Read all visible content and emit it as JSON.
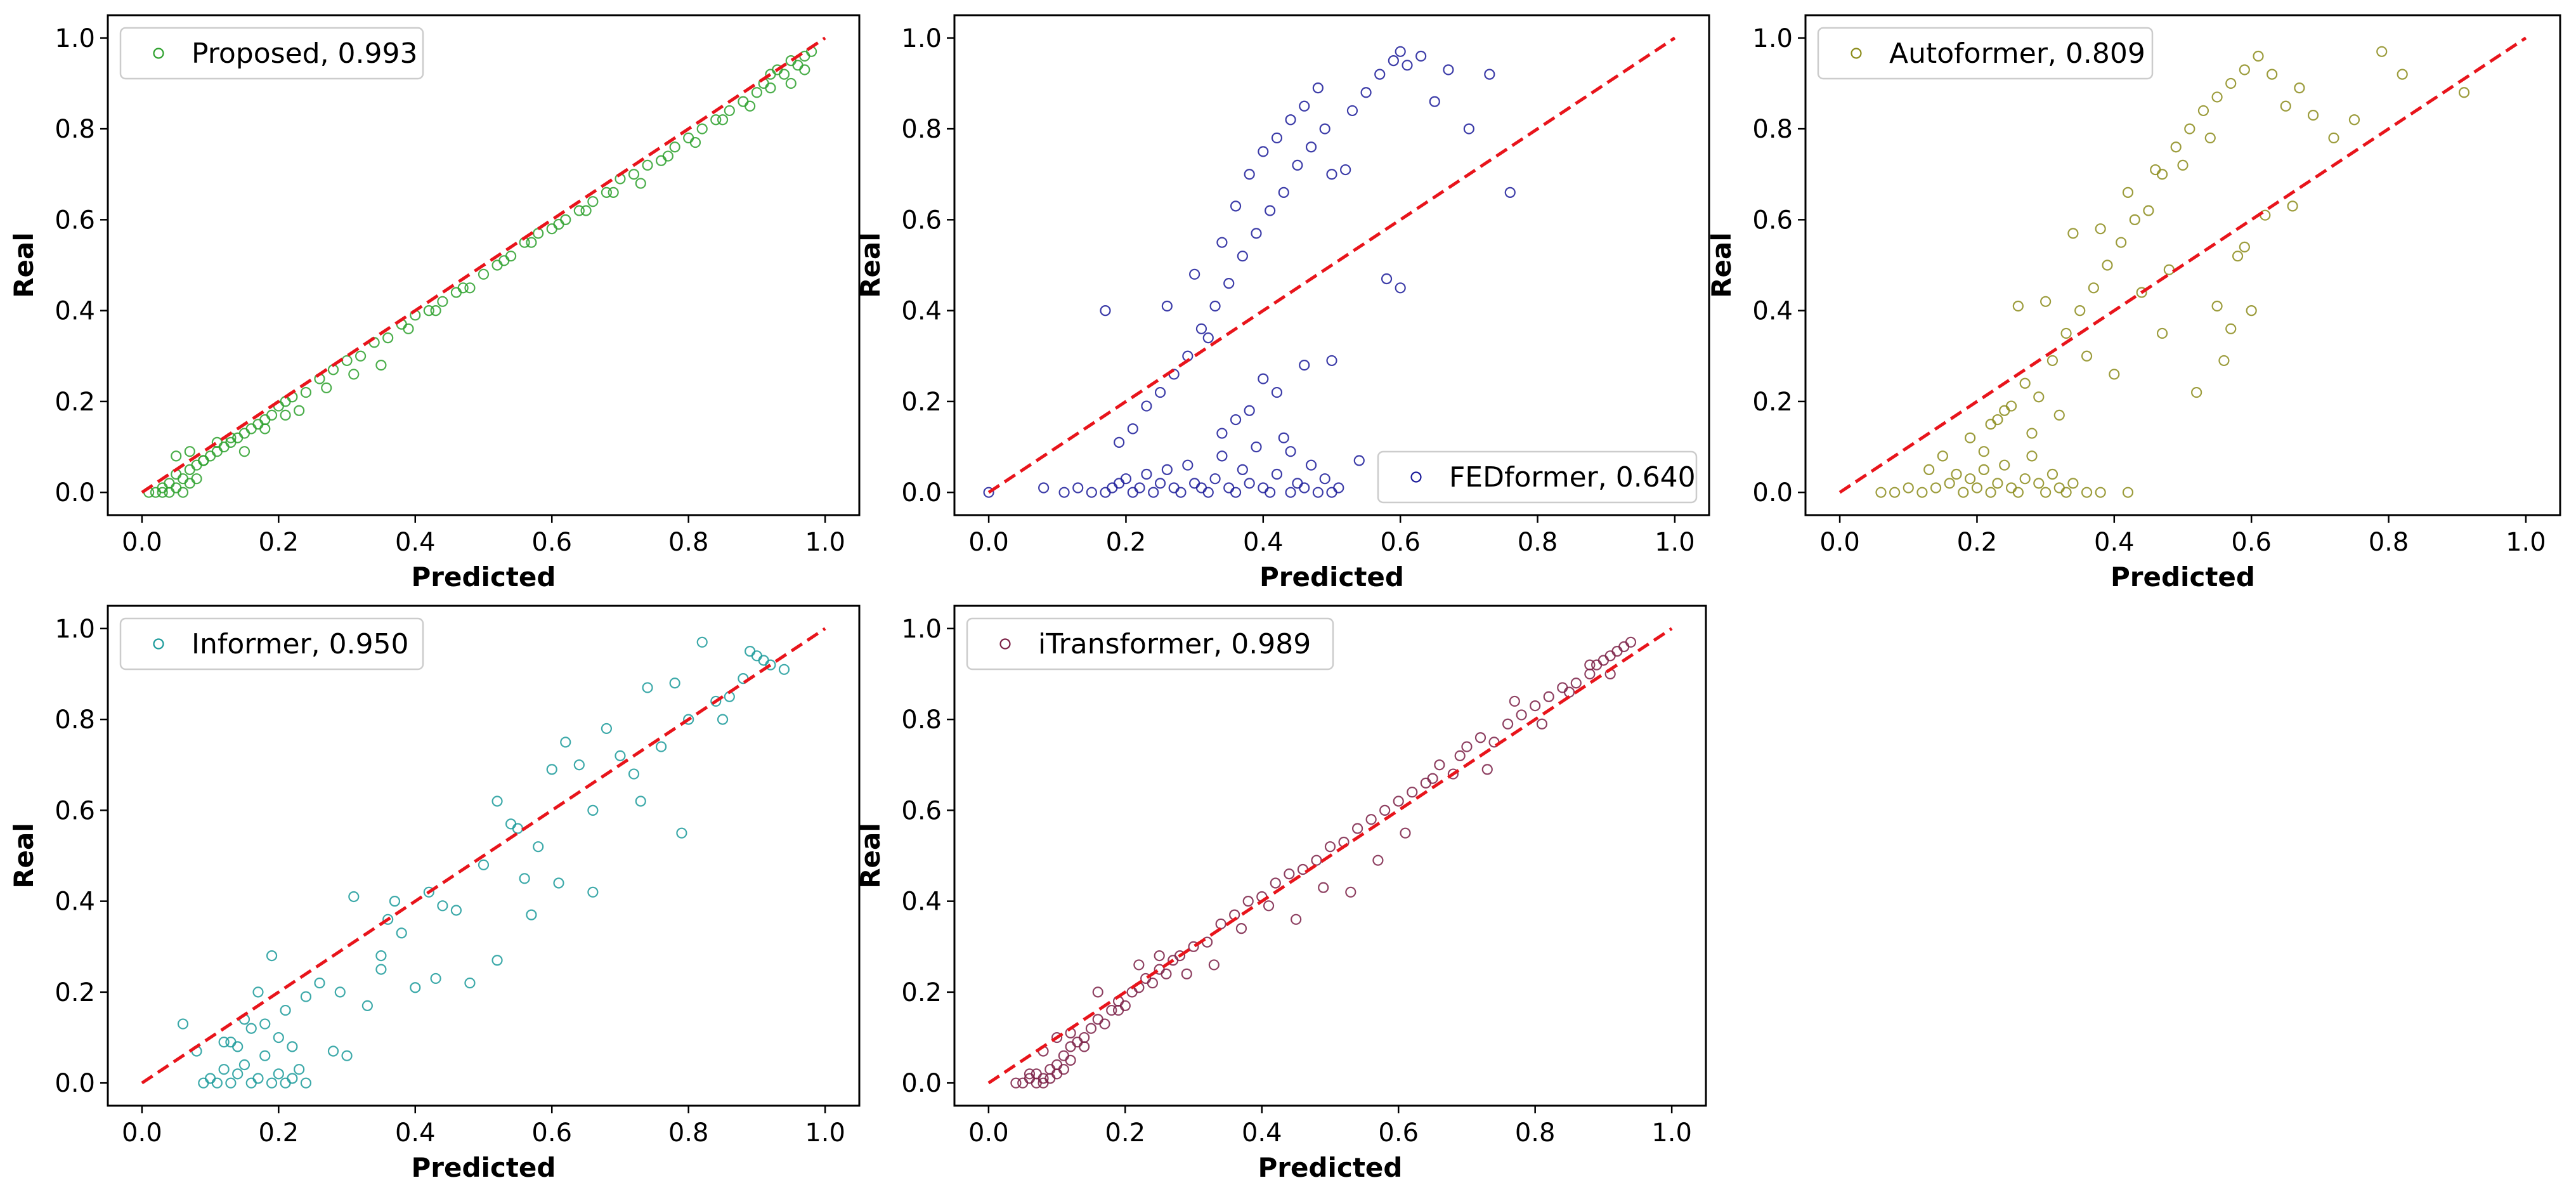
{
  "chart_data": [
    {
      "type": "scatter",
      "series_name": "Proposed",
      "score": "0.993",
      "legend_label": "Proposed, 0.993",
      "color": "#2ca02c",
      "legend_position": "upper-left",
      "xlabel": "Predicted",
      "ylabel": "Real",
      "xlim": [
        -0.05,
        1.05
      ],
      "ylim": [
        -0.05,
        1.05
      ],
      "xticks": [
        0.0,
        0.2,
        0.4,
        0.6,
        0.8,
        1.0
      ],
      "yticks": [
        0.0,
        0.2,
        0.4,
        0.6,
        0.8,
        1.0
      ],
      "tick_labels": [
        "0.0",
        "0.2",
        "0.4",
        "0.6",
        "0.8",
        "1.0"
      ],
      "reference_line": "y = x",
      "x": [
        0.01,
        0.02,
        0.03,
        0.03,
        0.04,
        0.04,
        0.05,
        0.05,
        0.06,
        0.06,
        0.07,
        0.07,
        0.08,
        0.08,
        0.09,
        0.1,
        0.11,
        0.12,
        0.13,
        0.14,
        0.15,
        0.16,
        0.17,
        0.18,
        0.19,
        0.2,
        0.21,
        0.22,
        0.24,
        0.26,
        0.28,
        0.3,
        0.32,
        0.34,
        0.36,
        0.38,
        0.4,
        0.42,
        0.44,
        0.46,
        0.48,
        0.5,
        0.52,
        0.54,
        0.56,
        0.58,
        0.6,
        0.62,
        0.64,
        0.66,
        0.68,
        0.7,
        0.72,
        0.74,
        0.76,
        0.78,
        0.8,
        0.82,
        0.84,
        0.86,
        0.88,
        0.9,
        0.91,
        0.92,
        0.93,
        0.94,
        0.95,
        0.96,
        0.97,
        0.98,
        0.05,
        0.07,
        0.09,
        0.11,
        0.13,
        0.15,
        0.18,
        0.21,
        0.23,
        0.27,
        0.31,
        0.35,
        0.39,
        0.43,
        0.47,
        0.53,
        0.57,
        0.61,
        0.65,
        0.69,
        0.73,
        0.77,
        0.81,
        0.85,
        0.89,
        0.92,
        0.95,
        0.97
      ],
      "y": [
        0.0,
        0.0,
        0.01,
        0.0,
        0.02,
        0.0,
        0.01,
        0.04,
        0.03,
        0.0,
        0.05,
        0.02,
        0.06,
        0.03,
        0.07,
        0.08,
        0.09,
        0.1,
        0.11,
        0.12,
        0.13,
        0.14,
        0.15,
        0.16,
        0.17,
        0.19,
        0.2,
        0.21,
        0.22,
        0.25,
        0.27,
        0.29,
        0.3,
        0.33,
        0.34,
        0.37,
        0.39,
        0.4,
        0.42,
        0.44,
        0.45,
        0.48,
        0.5,
        0.52,
        0.55,
        0.57,
        0.58,
        0.6,
        0.62,
        0.64,
        0.66,
        0.69,
        0.7,
        0.72,
        0.73,
        0.76,
        0.78,
        0.8,
        0.82,
        0.84,
        0.86,
        0.88,
        0.9,
        0.92,
        0.93,
        0.92,
        0.95,
        0.94,
        0.96,
        0.97,
        0.08,
        0.09,
        0.07,
        0.11,
        0.12,
        0.09,
        0.14,
        0.17,
        0.18,
        0.23,
        0.26,
        0.28,
        0.36,
        0.4,
        0.45,
        0.51,
        0.55,
        0.59,
        0.62,
        0.66,
        0.68,
        0.74,
        0.77,
        0.82,
        0.85,
        0.89,
        0.9,
        0.93
      ]
    },
    {
      "type": "scatter",
      "series_name": "FEDformer",
      "score": "0.640",
      "legend_label": "FEDformer, 0.640",
      "color": "#1a1a99",
      "legend_position": "lower-right",
      "xlabel": "Predicted",
      "ylabel": "Real",
      "xlim": [
        -0.05,
        1.05
      ],
      "ylim": [
        -0.05,
        1.05
      ],
      "xticks": [
        0.0,
        0.2,
        0.4,
        0.6,
        0.8,
        1.0
      ],
      "yticks": [
        0.0,
        0.2,
        0.4,
        0.6,
        0.8,
        1.0
      ],
      "tick_labels": [
        "0.0",
        "0.2",
        "0.4",
        "0.6",
        "0.8",
        "1.0"
      ],
      "reference_line": "y = x",
      "x": [
        0.0,
        0.08,
        0.11,
        0.13,
        0.15,
        0.17,
        0.18,
        0.19,
        0.2,
        0.21,
        0.22,
        0.23,
        0.24,
        0.25,
        0.26,
        0.27,
        0.28,
        0.29,
        0.3,
        0.31,
        0.32,
        0.33,
        0.34,
        0.35,
        0.36,
        0.37,
        0.38,
        0.39,
        0.4,
        0.41,
        0.42,
        0.43,
        0.44,
        0.45,
        0.46,
        0.47,
        0.48,
        0.49,
        0.5,
        0.51,
        0.19,
        0.21,
        0.23,
        0.25,
        0.27,
        0.29,
        0.31,
        0.33,
        0.35,
        0.37,
        0.39,
        0.41,
        0.43,
        0.45,
        0.47,
        0.49,
        0.53,
        0.55,
        0.57,
        0.59,
        0.6,
        0.61,
        0.63,
        0.65,
        0.67,
        0.7,
        0.73,
        0.76,
        0.17,
        0.26,
        0.3,
        0.34,
        0.36,
        0.38,
        0.4,
        0.42,
        0.44,
        0.46,
        0.48,
        0.5,
        0.52,
        0.58,
        0.6,
        0.34,
        0.38,
        0.42,
        0.46,
        0.5,
        0.54,
        0.32,
        0.36,
        0.4,
        0.44
      ],
      "y": [
        0.0,
        0.01,
        0.0,
        0.01,
        0.0,
        0.0,
        0.01,
        0.02,
        0.03,
        0.0,
        0.01,
        0.04,
        0.0,
        0.02,
        0.05,
        0.01,
        0.0,
        0.06,
        0.02,
        0.01,
        0.0,
        0.03,
        0.08,
        0.01,
        0.0,
        0.05,
        0.02,
        0.1,
        0.01,
        0.0,
        0.04,
        0.12,
        0.0,
        0.02,
        0.01,
        0.06,
        0.0,
        0.03,
        0.0,
        0.01,
        0.11,
        0.14,
        0.19,
        0.22,
        0.26,
        0.3,
        0.36,
        0.41,
        0.46,
        0.52,
        0.57,
        0.62,
        0.66,
        0.72,
        0.76,
        0.8,
        0.84,
        0.88,
        0.92,
        0.95,
        0.97,
        0.94,
        0.96,
        0.86,
        0.93,
        0.8,
        0.92,
        0.66,
        0.4,
        0.41,
        0.48,
        0.55,
        0.63,
        0.7,
        0.75,
        0.78,
        0.82,
        0.85,
        0.89,
        0.7,
        0.71,
        0.47,
        0.45,
        0.13,
        0.18,
        0.22,
        0.28,
        0.29,
        0.07,
        0.34,
        0.16,
        0.25,
        0.09
      ]
    },
    {
      "type": "scatter",
      "series_name": "Autoformer",
      "score": "0.809",
      "legend_label": "Autoformer, 0.809",
      "color": "#8b8b1a",
      "legend_position": "upper-left",
      "xlabel": "Predicted",
      "ylabel": "Real",
      "xlim": [
        -0.05,
        1.05
      ],
      "ylim": [
        -0.05,
        1.05
      ],
      "xticks": [
        0.0,
        0.2,
        0.4,
        0.6,
        0.8,
        1.0
      ],
      "yticks": [
        0.0,
        0.2,
        0.4,
        0.6,
        0.8,
        1.0
      ],
      "tick_labels": [
        "0.0",
        "0.2",
        "0.4",
        "0.6",
        "0.8",
        "1.0"
      ],
      "reference_line": "y = x",
      "x": [
        0.06,
        0.08,
        0.1,
        0.12,
        0.14,
        0.16,
        0.18,
        0.19,
        0.2,
        0.21,
        0.22,
        0.23,
        0.24,
        0.25,
        0.26,
        0.27,
        0.28,
        0.29,
        0.3,
        0.31,
        0.32,
        0.33,
        0.34,
        0.36,
        0.38,
        0.42,
        0.13,
        0.15,
        0.17,
        0.19,
        0.21,
        0.23,
        0.25,
        0.27,
        0.29,
        0.31,
        0.33,
        0.35,
        0.37,
        0.39,
        0.41,
        0.43,
        0.45,
        0.47,
        0.49,
        0.51,
        0.53,
        0.55,
        0.57,
        0.59,
        0.61,
        0.63,
        0.65,
        0.67,
        0.69,
        0.72,
        0.75,
        0.79,
        0.82,
        0.91,
        0.22,
        0.26,
        0.3,
        0.34,
        0.38,
        0.42,
        0.46,
        0.5,
        0.54,
        0.58,
        0.62,
        0.66,
        0.44,
        0.48,
        0.52,
        0.56,
        0.6,
        0.4,
        0.36,
        0.32,
        0.28,
        0.24,
        0.47,
        0.55,
        0.59,
        0.57
      ],
      "y": [
        0.0,
        0.0,
        0.01,
        0.0,
        0.01,
        0.02,
        0.0,
        0.03,
        0.01,
        0.05,
        0.0,
        0.02,
        0.06,
        0.01,
        0.0,
        0.03,
        0.08,
        0.02,
        0.0,
        0.04,
        0.01,
        0.0,
        0.02,
        0.0,
        0.0,
        0.0,
        0.05,
        0.08,
        0.04,
        0.12,
        0.09,
        0.16,
        0.19,
        0.24,
        0.21,
        0.29,
        0.35,
        0.4,
        0.45,
        0.5,
        0.55,
        0.6,
        0.62,
        0.7,
        0.76,
        0.8,
        0.84,
        0.87,
        0.9,
        0.93,
        0.96,
        0.92,
        0.85,
        0.89,
        0.83,
        0.78,
        0.82,
        0.97,
        0.92,
        0.88,
        0.15,
        0.41,
        0.42,
        0.57,
        0.58,
        0.66,
        0.71,
        0.72,
        0.78,
        0.52,
        0.61,
        0.63,
        0.44,
        0.49,
        0.22,
        0.29,
        0.4,
        0.26,
        0.3,
        0.17,
        0.13,
        0.18,
        0.35,
        0.41,
        0.54,
        0.36
      ]
    },
    {
      "type": "scatter",
      "series_name": "Informer",
      "score": "0.950",
      "legend_label": "Informer, 0.950",
      "color": "#1a9a9a",
      "legend_position": "upper-left",
      "xlabel": "Predicted",
      "ylabel": "Real",
      "xlim": [
        -0.05,
        1.05
      ],
      "ylim": [
        -0.05,
        1.05
      ],
      "xticks": [
        0.0,
        0.2,
        0.4,
        0.6,
        0.8,
        1.0
      ],
      "yticks": [
        0.0,
        0.2,
        0.4,
        0.6,
        0.8,
        1.0
      ],
      "tick_labels": [
        "0.0",
        "0.2",
        "0.4",
        "0.6",
        "0.8",
        "1.0"
      ],
      "reference_line": "y = x",
      "x": [
        0.06,
        0.08,
        0.09,
        0.1,
        0.11,
        0.12,
        0.13,
        0.14,
        0.15,
        0.16,
        0.17,
        0.18,
        0.19,
        0.2,
        0.21,
        0.22,
        0.23,
        0.24,
        0.12,
        0.14,
        0.16,
        0.18,
        0.2,
        0.22,
        0.17,
        0.15,
        0.13,
        0.19,
        0.21,
        0.24,
        0.26,
        0.28,
        0.29,
        0.31,
        0.33,
        0.35,
        0.36,
        0.37,
        0.38,
        0.4,
        0.42,
        0.44,
        0.46,
        0.48,
        0.5,
        0.52,
        0.54,
        0.55,
        0.56,
        0.58,
        0.6,
        0.62,
        0.64,
        0.66,
        0.68,
        0.7,
        0.72,
        0.74,
        0.76,
        0.78,
        0.8,
        0.82,
        0.84,
        0.86,
        0.88,
        0.9,
        0.92,
        0.94,
        0.3,
        0.35,
        0.43,
        0.52,
        0.57,
        0.61,
        0.66,
        0.73,
        0.79,
        0.85,
        0.89,
        0.91
      ],
      "y": [
        0.13,
        0.07,
        0.0,
        0.01,
        0.0,
        0.03,
        0.0,
        0.02,
        0.04,
        0.0,
        0.01,
        0.06,
        0.0,
        0.02,
        0.0,
        0.01,
        0.03,
        0.0,
        0.09,
        0.08,
        0.12,
        0.13,
        0.1,
        0.08,
        0.2,
        0.14,
        0.09,
        0.28,
        0.16,
        0.19,
        0.22,
        0.07,
        0.2,
        0.41,
        0.17,
        0.28,
        0.36,
        0.4,
        0.33,
        0.21,
        0.42,
        0.39,
        0.38,
        0.22,
        0.48,
        0.62,
        0.57,
        0.56,
        0.45,
        0.52,
        0.69,
        0.75,
        0.7,
        0.6,
        0.78,
        0.72,
        0.68,
        0.87,
        0.74,
        0.88,
        0.8,
        0.97,
        0.84,
        0.85,
        0.89,
        0.94,
        0.92,
        0.91,
        0.06,
        0.25,
        0.23,
        0.27,
        0.37,
        0.44,
        0.42,
        0.62,
        0.55,
        0.8,
        0.95,
        0.93
      ]
    },
    {
      "type": "scatter",
      "series_name": "iTransformer",
      "score": "0.989",
      "legend_label": "iTransformer, 0.989",
      "color": "#7a1f45",
      "legend_position": "upper-left",
      "xlabel": "Predicted",
      "ylabel": "Real",
      "xlim": [
        -0.05,
        1.05
      ],
      "ylim": [
        -0.05,
        1.05
      ],
      "xticks": [
        0.0,
        0.2,
        0.4,
        0.6,
        0.8,
        1.0
      ],
      "yticks": [
        0.0,
        0.2,
        0.4,
        0.6,
        0.8,
        1.0
      ],
      "tick_labels": [
        "0.0",
        "0.2",
        "0.4",
        "0.6",
        "0.8",
        "1.0"
      ],
      "reference_line": "y = x",
      "x": [
        0.04,
        0.05,
        0.06,
        0.07,
        0.07,
        0.08,
        0.08,
        0.09,
        0.09,
        0.1,
        0.1,
        0.11,
        0.11,
        0.12,
        0.12,
        0.13,
        0.14,
        0.15,
        0.16,
        0.17,
        0.18,
        0.19,
        0.2,
        0.21,
        0.22,
        0.23,
        0.24,
        0.25,
        0.26,
        0.27,
        0.28,
        0.3,
        0.32,
        0.34,
        0.36,
        0.38,
        0.4,
        0.42,
        0.44,
        0.46,
        0.48,
        0.5,
        0.52,
        0.54,
        0.56,
        0.58,
        0.6,
        0.62,
        0.64,
        0.66,
        0.68,
        0.7,
        0.72,
        0.74,
        0.76,
        0.78,
        0.8,
        0.82,
        0.84,
        0.86,
        0.88,
        0.89,
        0.9,
        0.91,
        0.92,
        0.93,
        0.94,
        0.06,
        0.08,
        0.1,
        0.12,
        0.14,
        0.16,
        0.19,
        0.22,
        0.25,
        0.29,
        0.33,
        0.37,
        0.41,
        0.45,
        0.49,
        0.53,
        0.57,
        0.61,
        0.65,
        0.69,
        0.73,
        0.77,
        0.81,
        0.85,
        0.88,
        0.91
      ],
      "y": [
        0.0,
        0.0,
        0.01,
        0.0,
        0.02,
        0.01,
        0.0,
        0.03,
        0.01,
        0.04,
        0.02,
        0.06,
        0.03,
        0.05,
        0.08,
        0.09,
        0.1,
        0.12,
        0.14,
        0.13,
        0.16,
        0.18,
        0.17,
        0.2,
        0.21,
        0.23,
        0.22,
        0.25,
        0.24,
        0.27,
        0.28,
        0.3,
        0.31,
        0.35,
        0.37,
        0.4,
        0.41,
        0.44,
        0.46,
        0.47,
        0.49,
        0.52,
        0.53,
        0.56,
        0.58,
        0.6,
        0.62,
        0.64,
        0.66,
        0.7,
        0.68,
        0.74,
        0.76,
        0.75,
        0.79,
        0.81,
        0.83,
        0.85,
        0.87,
        0.88,
        0.9,
        0.92,
        0.93,
        0.94,
        0.95,
        0.96,
        0.97,
        0.02,
        0.07,
        0.1,
        0.11,
        0.08,
        0.2,
        0.16,
        0.26,
        0.28,
        0.24,
        0.26,
        0.34,
        0.39,
        0.36,
        0.43,
        0.42,
        0.49,
        0.55,
        0.67,
        0.72,
        0.69,
        0.84,
        0.79,
        0.86,
        0.92,
        0.9
      ]
    }
  ]
}
